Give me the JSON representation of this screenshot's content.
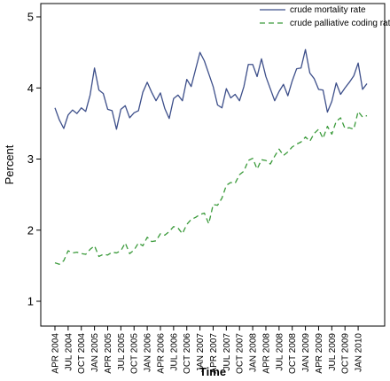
{
  "chart_data": {
    "type": "line",
    "xlabel": "Time",
    "ylabel": "Percent",
    "ylim": [
      1,
      5
    ],
    "yticks": [
      1,
      2,
      3,
      4,
      5
    ],
    "grid": false,
    "legend_position": "top-right",
    "xticks": [
      {
        "index": 0,
        "label": "APR 2004"
      },
      {
        "index": 3,
        "label": "JUL 2004"
      },
      {
        "index": 6,
        "label": "OCT 2004"
      },
      {
        "index": 9,
        "label": "JAN 2005"
      },
      {
        "index": 12,
        "label": "APR 2005"
      },
      {
        "index": 15,
        "label": "JUL 2005"
      },
      {
        "index": 18,
        "label": "OCT 2005"
      },
      {
        "index": 21,
        "label": "JAN 2006"
      },
      {
        "index": 24,
        "label": "APR 2006"
      },
      {
        "index": 27,
        "label": "JUL 2006"
      },
      {
        "index": 30,
        "label": "OCT 2006"
      },
      {
        "index": 33,
        "label": "JAN 2007"
      },
      {
        "index": 36,
        "label": "APR 2007"
      },
      {
        "index": 39,
        "label": "JUL 2007"
      },
      {
        "index": 42,
        "label": "OCT 2007"
      },
      {
        "index": 45,
        "label": "JAN 2008"
      },
      {
        "index": 48,
        "label": "APR 2008"
      },
      {
        "index": 51,
        "label": "JUL 2008"
      },
      {
        "index": 54,
        "label": "OCT 2008"
      },
      {
        "index": 57,
        "label": "JAN 2009"
      },
      {
        "index": 60,
        "label": "APR 2009"
      },
      {
        "index": 63,
        "label": "JUL 2009"
      },
      {
        "index": 66,
        "label": "OCT 2009"
      },
      {
        "index": 69,
        "label": "JAN 2010"
      }
    ],
    "series": [
      {
        "name": "crude mortality rate",
        "color": "#3d4f8a",
        "dash": "solid",
        "values": [
          3.72,
          3.55,
          3.43,
          3.62,
          3.69,
          3.64,
          3.72,
          3.67,
          3.9,
          4.28,
          3.97,
          3.92,
          3.7,
          3.68,
          3.42,
          3.7,
          3.75,
          3.58,
          3.65,
          3.68,
          3.94,
          4.08,
          3.94,
          3.82,
          3.93,
          3.71,
          3.57,
          3.85,
          3.9,
          3.82,
          4.12,
          4.02,
          4.26,
          4.5,
          4.38,
          4.2,
          4.02,
          3.76,
          3.72,
          3.99,
          3.86,
          3.91,
          3.82,
          4.02,
          4.33,
          4.33,
          4.16,
          4.41,
          4.16,
          3.99,
          3.82,
          3.95,
          4.05,
          3.89,
          4.1,
          4.27,
          4.28,
          4.54,
          4.21,
          4.13,
          3.98,
          3.97,
          3.66,
          3.81,
          4.07,
          3.91,
          4.0,
          4.08,
          4.17,
          4.35,
          3.98,
          4.06
        ]
      },
      {
        "name": "crude palliative coding rate",
        "color": "#3a9a3a",
        "dash": "dashed",
        "values": [
          1.54,
          1.52,
          1.57,
          1.71,
          1.68,
          1.69,
          1.67,
          1.66,
          1.73,
          1.78,
          1.63,
          1.66,
          1.65,
          1.69,
          1.68,
          1.71,
          1.82,
          1.67,
          1.72,
          1.82,
          1.78,
          1.9,
          1.84,
          1.85,
          1.95,
          1.93,
          1.98,
          2.05,
          2.03,
          1.95,
          2.08,
          2.15,
          2.18,
          2.22,
          2.24,
          2.09,
          2.36,
          2.35,
          2.45,
          2.63,
          2.67,
          2.66,
          2.78,
          2.83,
          2.98,
          3.01,
          2.86,
          2.99,
          2.98,
          2.93,
          3.04,
          3.14,
          3.05,
          3.1,
          3.17,
          3.21,
          3.24,
          3.31,
          3.25,
          3.36,
          3.42,
          3.29,
          3.46,
          3.35,
          3.53,
          3.58,
          3.43,
          3.44,
          3.42,
          3.67,
          3.59,
          3.61
        ]
      }
    ]
  }
}
